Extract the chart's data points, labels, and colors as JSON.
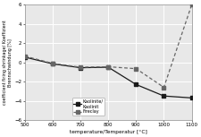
{
  "title": "",
  "xlabel": "temperature/Temperatur [°C]",
  "ylabel": "coefficient firing shrinkage/ Koeffizient\nBrennschwindung [%]",
  "xlim": [
    500,
    1100
  ],
  "ylim": [
    -6,
    6
  ],
  "xticks": [
    500,
    600,
    700,
    800,
    900,
    1000,
    1100
  ],
  "yticks": [
    -6,
    -4,
    -2,
    0,
    2,
    4,
    6
  ],
  "kaolinite_x": [
    500,
    600,
    700,
    800,
    900,
    1000,
    1100
  ],
  "kaolinite_y": [
    0.55,
    -0.15,
    -0.55,
    -0.5,
    -2.3,
    -3.5,
    -3.7
  ],
  "fireclay_x": [
    500,
    600,
    700,
    800,
    900,
    1000,
    1100
  ],
  "fireclay_y": [
    0.65,
    -0.1,
    -0.5,
    -0.45,
    -0.65,
    -2.6,
    6.0
  ],
  "kaolinite_color": "#1a1a1a",
  "fireclay_color": "#666666",
  "background_color": "#e8e8e8",
  "legend_labels": [
    "Kaolinite/\nKaolinit",
    "Fireclay"
  ],
  "grid_color": "#ffffff"
}
